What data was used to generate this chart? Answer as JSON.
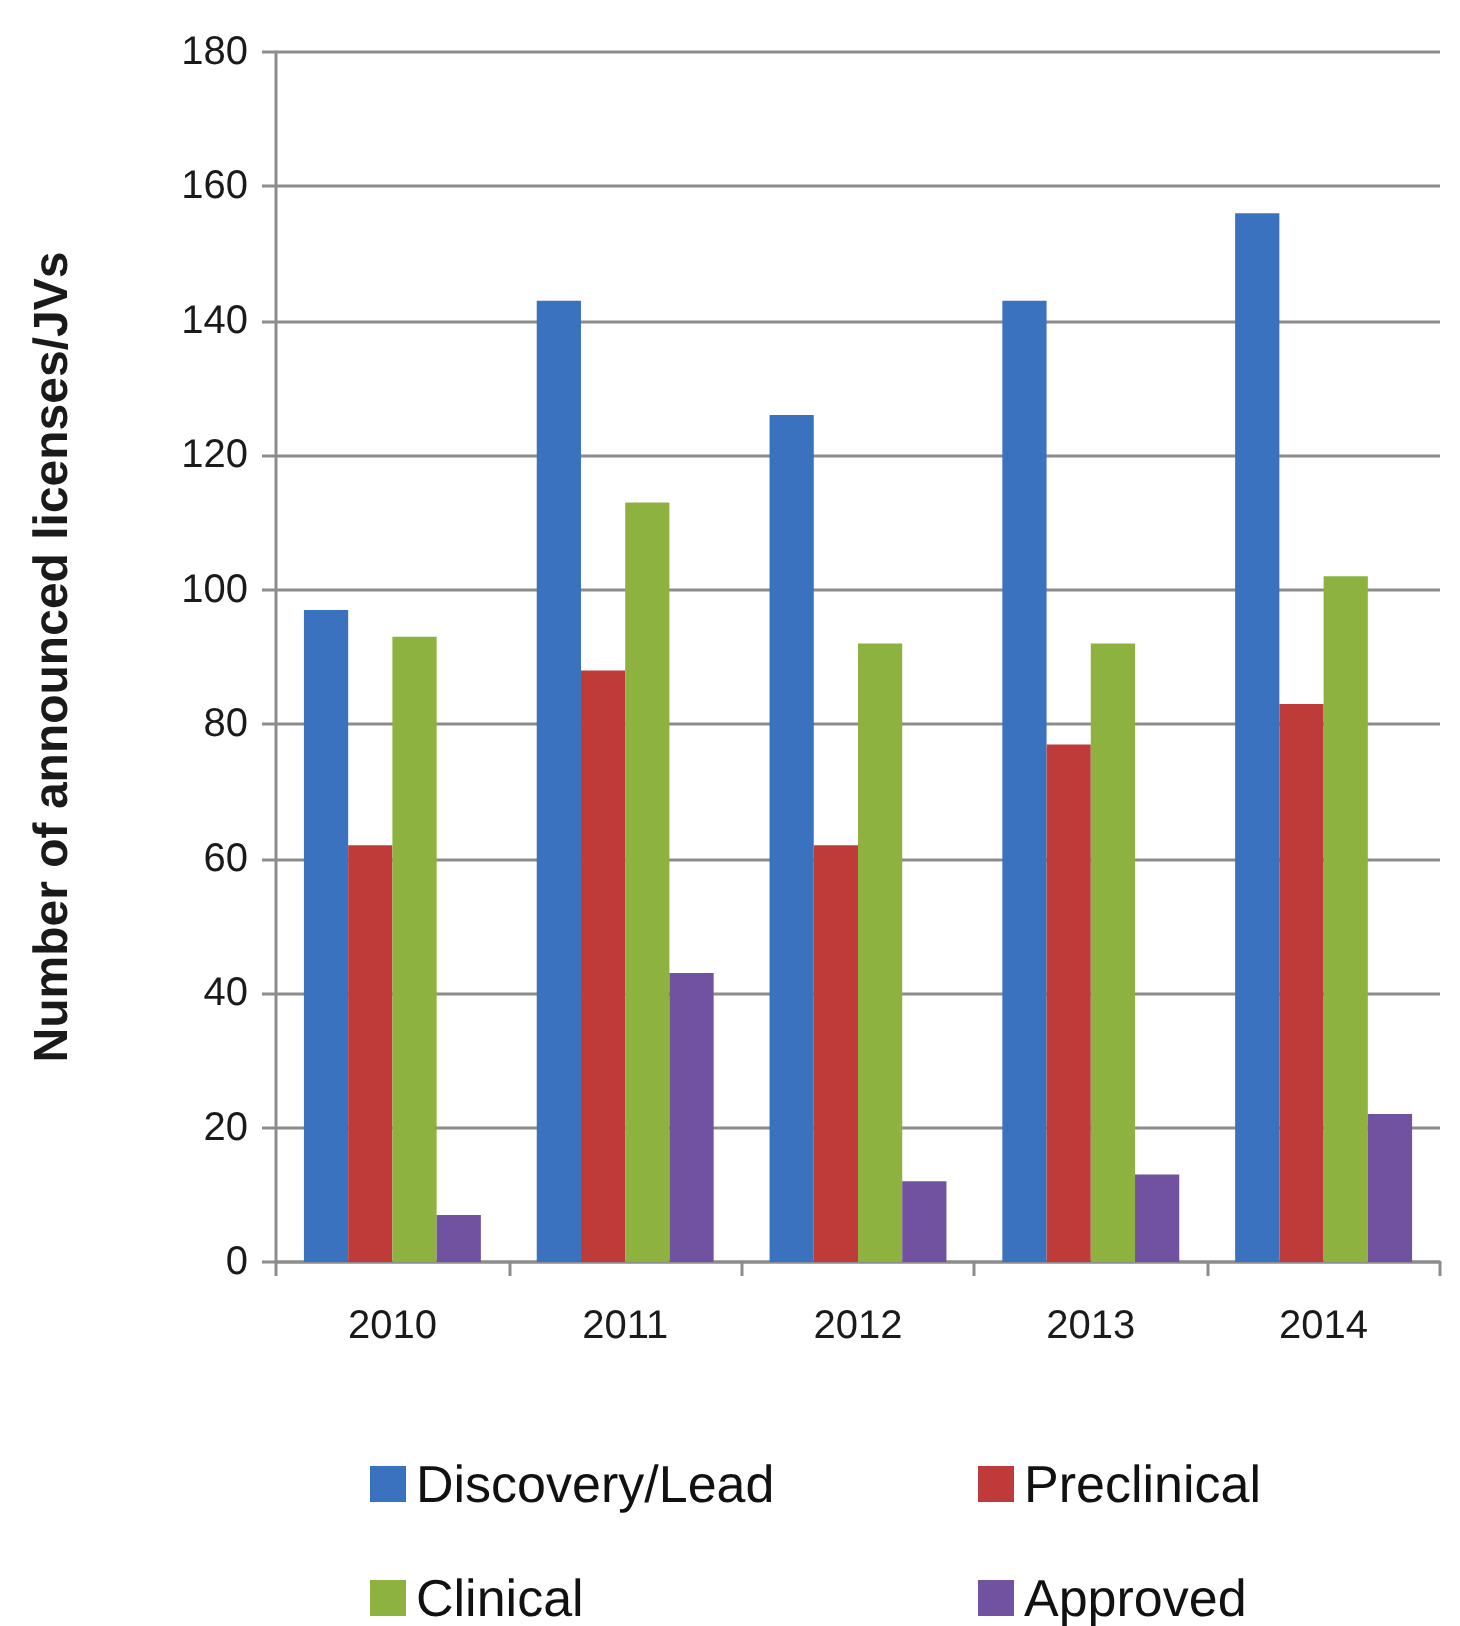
{
  "chart_data": {
    "type": "bar",
    "ylabel": "Number of announced licenses/JVs",
    "categories": [
      "2010",
      "2011",
      "2012",
      "2013",
      "2014"
    ],
    "series": [
      {
        "name": "Discovery/Lead",
        "color": "#3a72c0",
        "values": [
          97,
          143,
          126,
          143,
          156
        ]
      },
      {
        "name": "Preclinical",
        "color": "#bf3b3a",
        "values": [
          62,
          88,
          62,
          77,
          83
        ]
      },
      {
        "name": "Clinical",
        "color": "#8db23f",
        "values": [
          93,
          113,
          92,
          92,
          102
        ]
      },
      {
        "name": "Approved",
        "color": "#7152a0",
        "values": [
          7,
          43,
          12,
          13,
          22
        ]
      }
    ],
    "ylim": [
      0,
      180
    ],
    "yticks": [
      0,
      20,
      40,
      60,
      80,
      100,
      120,
      140,
      160,
      180
    ],
    "grid": "y",
    "legend": "bottom"
  }
}
